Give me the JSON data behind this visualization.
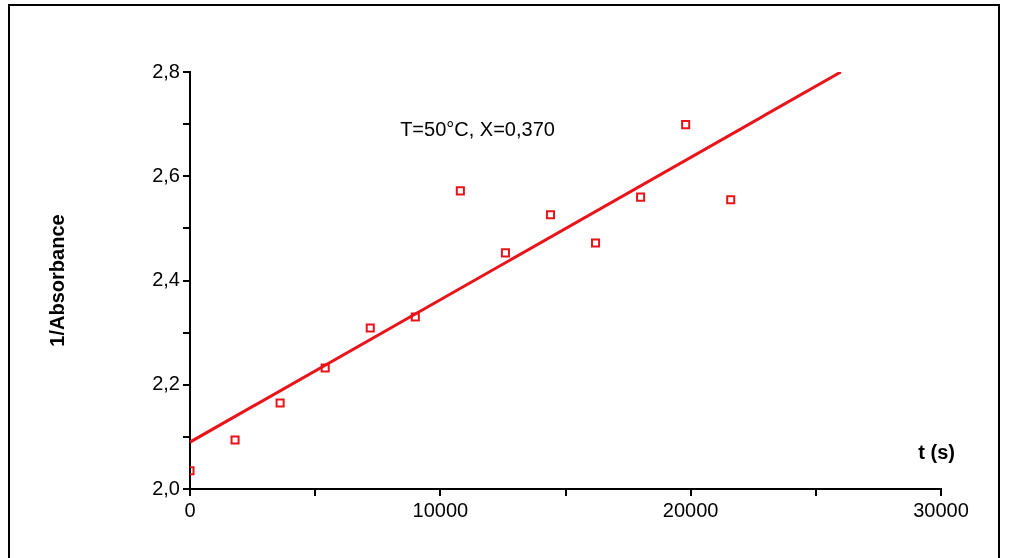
{
  "chart_data": {
    "type": "scatter",
    "xlabel": "t (s)",
    "ylabel": "1/Absorbance",
    "annotations": [
      "T=50°C, X=0,370"
    ],
    "xlim": [
      0,
      30000
    ],
    "xticks": [
      0,
      {
        "value": 5000,
        "label": null
      },
      10000,
      {
        "value": 15000,
        "label": null
      },
      20000,
      {
        "value": 25000,
        "label": null
      },
      30000
    ],
    "ylim": [
      2.0,
      2.8
    ],
    "yticks": [
      {
        "value": 2.0,
        "label": "2,0"
      },
      {
        "value": 2.1,
        "label": null
      },
      {
        "value": 2.2,
        "label": "2,2"
      },
      {
        "value": 2.3,
        "label": null
      },
      {
        "value": 2.4,
        "label": "2,4"
      },
      {
        "value": 2.5,
        "label": null
      },
      {
        "value": 2.6,
        "label": "2,6"
      },
      {
        "value": 2.7,
        "label": null
      },
      {
        "value": 2.8,
        "label": "2,8"
      }
    ],
    "grid": false,
    "legend": false,
    "marker": "square",
    "series": [
      {
        "color": "#e8141a",
        "x": [
          0,
          1800,
          3600,
          5400,
          7200,
          9000,
          10800,
          12600,
          14400,
          16200,
          18000,
          19800,
          21600
        ],
        "values": [
          2.035,
          2.094,
          2.165,
          2.232,
          2.309,
          2.33,
          2.572,
          2.453,
          2.526,
          2.472,
          2.56,
          2.699,
          2.555
        ]
      },
      {
        "type": "line",
        "color": "#e8141a",
        "x": [
          0,
          26000
        ],
        "values": [
          2.09,
          2.8
        ],
        "marker": "none",
        "line_style": "solid"
      }
    ]
  }
}
